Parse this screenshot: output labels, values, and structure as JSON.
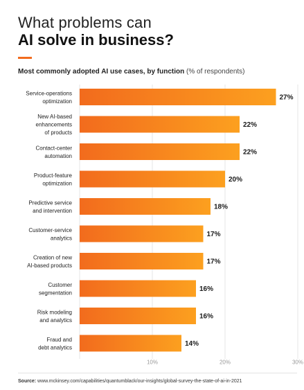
{
  "header": {
    "title_line1": "What problems can",
    "title_line2": "AI solve in business?",
    "accent_color": "#f26b1d"
  },
  "subtitle": {
    "bold": "Most commonly adopted AI use cases, by function",
    "light": "(% of respondents)"
  },
  "chart_data": {
    "type": "bar",
    "orientation": "horizontal",
    "categories": [
      "Service-operations optimization",
      "New AI-based enhancements of products",
      "Contact-center automation",
      "Product-feature optimization",
      "Predictive service and intervention",
      "Customer-service analytics",
      "Creation of new AI-based products",
      "Customer segmentation",
      "Risk modeling and analytics",
      "Fraud and debt analytics"
    ],
    "category_lines": [
      [
        "Service-operations",
        "optimization"
      ],
      [
        "New AI-based",
        "enhancements",
        "of products"
      ],
      [
        "Contact-center",
        "automation"
      ],
      [
        "Product-feature",
        "optimization"
      ],
      [
        "Predictive service",
        "and intervention"
      ],
      [
        "Customer-service",
        "analytics"
      ],
      [
        "Creation of new",
        "AI-based products"
      ],
      [
        "Customer",
        "segmentation"
      ],
      [
        "Risk modeling",
        "and analytics"
      ],
      [
        "Fraud and",
        "debt analytics"
      ]
    ],
    "values": [
      27,
      22,
      22,
      20,
      18,
      17,
      17,
      16,
      16,
      14
    ],
    "value_labels": [
      "27%",
      "22%",
      "22%",
      "20%",
      "18%",
      "17%",
      "17%",
      "16%",
      "16%",
      "14%"
    ],
    "xlim": [
      0,
      30
    ],
    "xticks": [
      10,
      20,
      30
    ],
    "xtick_labels": [
      "10%",
      "20%",
      "30%"
    ],
    "grid": true,
    "colors": {
      "bar_start": "#f26b1d",
      "bar_end": "#fca01f",
      "grid": "#e6e6e6",
      "tick_text": "#999999"
    }
  },
  "source": {
    "label": "Source:",
    "text": "www.mckinsey.com/capabilities/quantumblack/our-insights/global-survey-the-state-of-ai-in-2021"
  }
}
